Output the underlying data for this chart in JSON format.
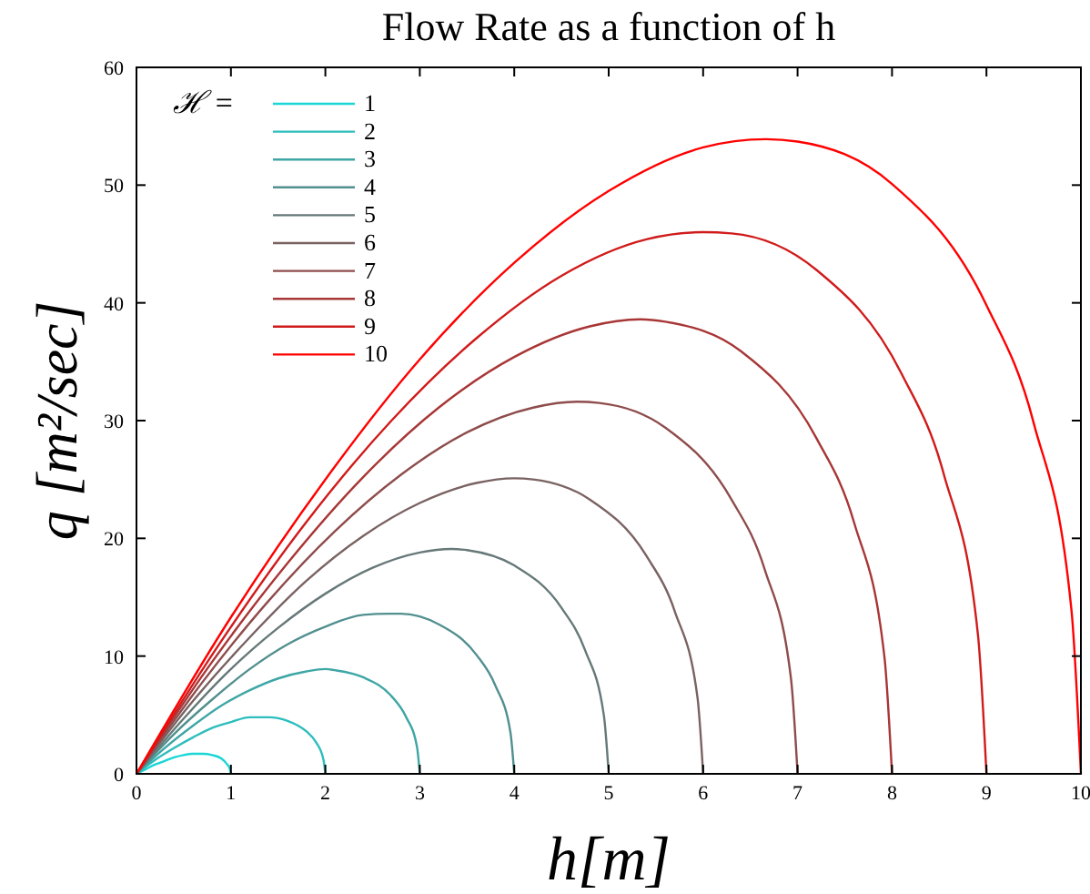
{
  "chart_data": {
    "type": "line",
    "title": "Flow Rate as a function of h",
    "xlabel": "h[m]",
    "ylabel": "q [m²/sec]",
    "legend_title": "ℋ =",
    "legend": "top left",
    "grid": false,
    "marker": "none",
    "line_style": "solid",
    "xlim": [
      0,
      10
    ],
    "ylim": [
      0,
      60
    ],
    "xticks": [
      0,
      1,
      2,
      3,
      4,
      5,
      6,
      7,
      8,
      9,
      10
    ],
    "yticks": [
      0,
      10,
      20,
      30,
      40,
      50,
      60
    ],
    "series": [
      {
        "name": "1",
        "color": "#1ad6d6",
        "x": [
          0,
          0.1,
          0.2,
          0.3,
          0.4,
          0.5,
          0.6,
          0.667,
          0.7,
          0.8,
          0.9,
          0.95,
          0.99,
          1
        ],
        "values": [
          0,
          0.4,
          0.8,
          1.1,
          1.4,
          1.6,
          1.7,
          1.7,
          1.7,
          1.6,
          1.3,
          0.9,
          0.4,
          0
        ]
      },
      {
        "name": "2",
        "color": "#2dbdbd",
        "x": [
          0,
          0.2,
          0.4,
          0.6,
          0.8,
          1,
          1.2,
          1.333,
          1.4,
          1.6,
          1.8,
          1.9,
          1.98,
          2
        ],
        "values": [
          0,
          1.2,
          2.2,
          3.1,
          3.9,
          4.4,
          4.8,
          4.8,
          4.8,
          4.5,
          3.6,
          2.7,
          1.2,
          0
        ]
      },
      {
        "name": "3",
        "color": "#3fa6a6",
        "x": [
          0,
          0.3,
          0.6,
          0.9,
          1.2,
          1.5,
          1.8,
          2,
          2.1,
          2.4,
          2.7,
          2.85,
          2.97,
          3
        ],
        "values": [
          0,
          2.2,
          4.1,
          5.8,
          7.1,
          8.1,
          8.7,
          8.9,
          8.8,
          8.2,
          6.6,
          4.9,
          2.3,
          0
        ]
      },
      {
        "name": "4",
        "color": "#528f8f",
        "x": [
          0,
          0.4,
          0.8,
          1.2,
          1.6,
          2,
          2.4,
          2.667,
          2.8,
          3.2,
          3.6,
          3.8,
          3.96,
          4
        ],
        "values": [
          0,
          3.4,
          6.3,
          8.9,
          11,
          12.5,
          13.5,
          13.6,
          13.6,
          12.7,
          10.1,
          7.5,
          3.5,
          0
        ]
      },
      {
        "name": "5",
        "color": "#667878",
        "x": [
          0,
          0.5,
          1,
          1.5,
          2,
          2.5,
          3,
          3.333,
          3.5,
          4,
          4.5,
          4.75,
          4.95,
          5
        ],
        "values": [
          0,
          4.7,
          8.9,
          12.4,
          15.3,
          17.5,
          18.8,
          19.1,
          19,
          17.7,
          14.1,
          10.5,
          4.9,
          0
        ]
      },
      {
        "name": "6",
        "color": "#7a6262",
        "x": [
          0,
          0.6,
          1.2,
          1.8,
          2.4,
          3,
          3.6,
          4,
          4.2,
          4.8,
          5.4,
          5.7,
          5.94,
          6
        ],
        "values": [
          0,
          6.2,
          11.6,
          16.4,
          20.2,
          23,
          24.7,
          25.1,
          25,
          23.3,
          18.5,
          13.8,
          6.5,
          0
        ]
      },
      {
        "name": "7",
        "color": "#8f4c4c",
        "x": [
          0,
          0.7,
          1.4,
          2.1,
          2.8,
          3.5,
          4.2,
          4.667,
          4.9,
          5.6,
          6.3,
          6.65,
          6.93,
          7
        ],
        "values": [
          0,
          7.8,
          14.7,
          20.6,
          25.4,
          29,
          31.1,
          31.6,
          31.5,
          29.4,
          23.3,
          17.4,
          8.1,
          0
        ]
      },
      {
        "name": "8",
        "color": "#a83636",
        "x": [
          0,
          0.8,
          1.6,
          2.4,
          3.2,
          4,
          4.8,
          5.333,
          5.6,
          6.4,
          7.2,
          7.6,
          7.92,
          8
        ],
        "values": [
          0,
          9.5,
          17.9,
          25.2,
          31.1,
          35.4,
          38,
          38.6,
          38.4,
          35.9,
          28.5,
          21.3,
          9.9,
          0
        ]
      },
      {
        "name": "9",
        "color": "#d01b1b",
        "x": [
          0,
          0.9,
          1.8,
          2.7,
          3.6,
          4.5,
          5.4,
          6,
          6.3,
          7.2,
          8.1,
          8.55,
          8.91,
          9
        ],
        "values": [
          0,
          11.3,
          21.4,
          30,
          37,
          42.3,
          45.4,
          46,
          45.9,
          42.8,
          34,
          25.4,
          11.8,
          0
        ]
      },
      {
        "name": "10",
        "color": "#ff0000",
        "x": [
          0,
          1,
          2,
          3,
          4,
          5,
          6,
          6.667,
          7,
          8,
          9,
          9.5,
          9.9,
          10
        ],
        "values": [
          0,
          13.3,
          25,
          35.2,
          43.4,
          49.5,
          53.2,
          53.9,
          53.7,
          50.1,
          39.8,
          29.8,
          13.9,
          0
        ]
      }
    ]
  }
}
